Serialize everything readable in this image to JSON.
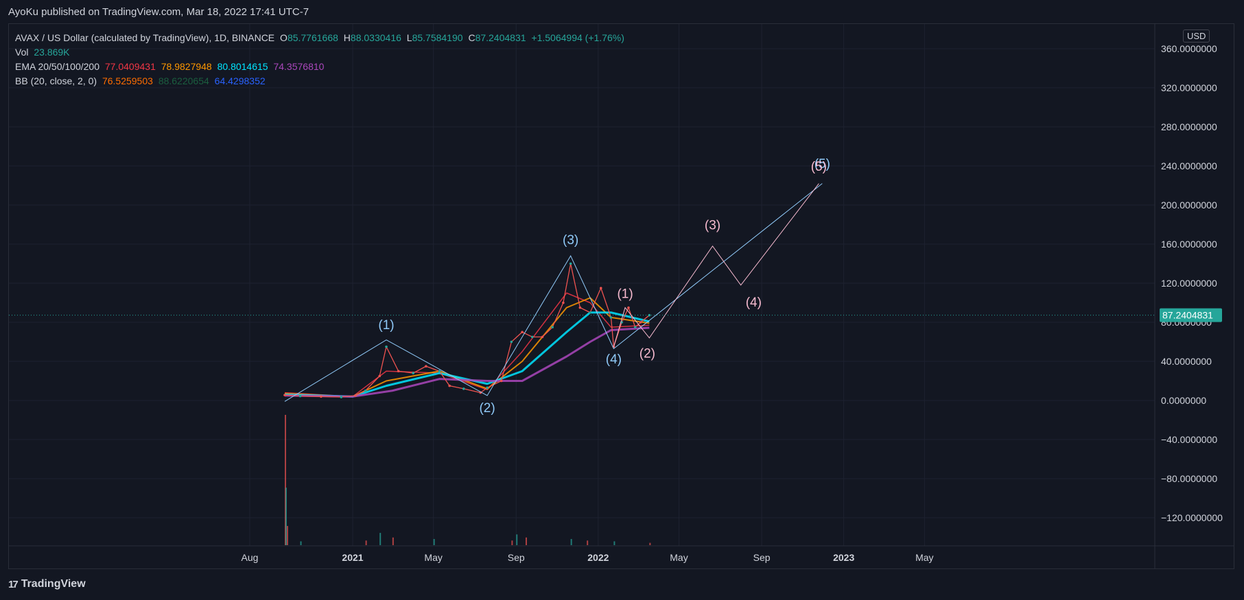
{
  "header": {
    "text": "AyoKu published on TradingView.com, Mar 18, 2022 17:41 UTC-7"
  },
  "footer": {
    "brand": "TradingView",
    "logo_glyph": "17"
  },
  "currency_button": "USD",
  "legend": {
    "symbol": "AVAX / US Dollar (calculated by TradingView), 1D, BINANCE",
    "o_label": "O",
    "o": "85.7761668",
    "h_label": "H",
    "h": "88.0330416",
    "l_label": "L",
    "l": "85.7584190",
    "c_label": "C",
    "c": "87.2404831",
    "change": "+1.5064994 (+1.76%)",
    "vol_label": "Vol",
    "vol": "23.869K",
    "ema_label": "EMA 20/50/100/200",
    "ema20": "77.0409431",
    "ema50": "78.9827948",
    "ema100": "80.8014615",
    "ema200": "74.3576810",
    "bb_label": "BB (20, close, 2, 0)",
    "bb_basis": "76.5259503",
    "bb_upper": "88.6220654",
    "bb_lower": "64.4298352"
  },
  "colors": {
    "background": "#131722",
    "grid": "#1e2230",
    "text": "#d1d4dc",
    "up": "#26a69a",
    "down": "#ef5350",
    "ema20": "#f23645",
    "ema50": "#ff9800",
    "ema100": "#00e5ff",
    "ema200": "#ab47bc",
    "bb_basis": "#ff6d00",
    "bb_upper": "#1b5e3f",
    "bb_lower": "#2962ff",
    "wave_blue": "#90caf9",
    "wave_pink": "#f8bbd0",
    "price_tag": "#26a69a"
  },
  "chart_data": {
    "type": "line",
    "title": "",
    "xlabel": "",
    "ylabel": "",
    "ylim": [
      -150,
      375
    ],
    "yticks": [
      360,
      320,
      280,
      240,
      200,
      160,
      120,
      80,
      40,
      0,
      -40,
      -80,
      -120
    ],
    "ytick_labels": [
      "360.0000000",
      "320.0000000",
      "280.0000000",
      "240.0000000",
      "200.0000000",
      "160.0000000",
      "120.0000000",
      "80.0000000",
      "40.0000000",
      "0.0000000",
      "−120.0000000"
    ],
    "ytick_labels_full": [
      "360.0000000",
      "320.0000000",
      "280.0000000",
      "240.0000000",
      "200.0000000",
      "160.0000000",
      "120.0000000",
      "80.0000000",
      "40.0000000",
      "0.0000000",
      "−40.0000000",
      "−80.0000000",
      "−120.0000000"
    ],
    "xticks": [
      "2020-08-01",
      "2021-01-01",
      "2021-05-01",
      "2021-09-01",
      "2022-01-01",
      "2022-05-01",
      "2022-09-01",
      "2023-01-01",
      "2023-05-01"
    ],
    "xtick_labels": [
      "Aug",
      "2021",
      "May",
      "Sep",
      "2022",
      "May",
      "Sep",
      "2023",
      "May"
    ],
    "xtick_bold": [
      false,
      true,
      false,
      false,
      true,
      false,
      false,
      true,
      false
    ],
    "xlim": [
      "2020-05-01",
      "2023-11-15"
    ],
    "last_price": 87.2404831,
    "last_price_label": "87.2404831",
    "price_series": {
      "name": "AVAX / US Dollar",
      "x": [
        "2020-09-22",
        "2020-10-15",
        "2020-11-15",
        "2020-12-15",
        "2021-01-05",
        "2021-01-20",
        "2021-02-10",
        "2021-02-20",
        "2021-03-10",
        "2021-04-01",
        "2021-04-20",
        "2021-05-10",
        "2021-05-25",
        "2021-06-15",
        "2021-07-10",
        "2021-07-20",
        "2021-08-10",
        "2021-08-25",
        "2021-09-10",
        "2021-09-25",
        "2021-10-10",
        "2021-10-25",
        "2021-11-10",
        "2021-11-21",
        "2021-12-05",
        "2021-12-20",
        "2022-01-05",
        "2022-01-20",
        "2022-01-24",
        "2022-02-05",
        "2022-02-15",
        "2022-02-25",
        "2022-03-05",
        "2022-03-18"
      ],
      "values": [
        5.5,
        4.5,
        4,
        3.5,
        5,
        10,
        25,
        55,
        30,
        28,
        35,
        30,
        15,
        12,
        8,
        13,
        20,
        60,
        70,
        65,
        65,
        75,
        100,
        140,
        95,
        90,
        115,
        85,
        55,
        80,
        95,
        75,
        80,
        87.24
      ]
    },
    "ema_series": [
      {
        "name": "EMA 20",
        "x": [
          "2020-09-22",
          "2021-01-01",
          "2021-02-20",
          "2021-05-10",
          "2021-07-20",
          "2021-09-10",
          "2021-11-15",
          "2021-12-20",
          "2022-01-20",
          "2022-03-18"
        ],
        "values": [
          8,
          4,
          30,
          28,
          11,
          50,
          110,
          100,
          75,
          77
        ]
      },
      {
        "name": "EMA 50",
        "x": [
          "2020-09-22",
          "2021-01-01",
          "2021-02-20",
          "2021-05-10",
          "2021-07-20",
          "2021-09-10",
          "2021-11-15",
          "2021-12-20",
          "2022-01-20",
          "2022-03-18"
        ],
        "values": [
          7,
          4,
          20,
          30,
          12,
          40,
          95,
          105,
          85,
          79
        ]
      },
      {
        "name": "EMA 100",
        "x": [
          "2020-09-22",
          "2021-01-01",
          "2021-02-20",
          "2021-05-10",
          "2021-07-20",
          "2021-09-10",
          "2021-11-15",
          "2021-12-20",
          "2022-01-20",
          "2022-03-18"
        ],
        "values": [
          6,
          4,
          15,
          28,
          17,
          30,
          70,
          90,
          90,
          80.8
        ]
      },
      {
        "name": "EMA 200",
        "x": [
          "2020-09-22",
          "2021-01-01",
          "2021-03-01",
          "2021-05-10",
          "2021-07-20",
          "2021-09-10",
          "2021-11-15",
          "2021-12-20",
          "2022-01-20",
          "2022-03-18"
        ],
        "values": [
          5,
          4,
          10,
          22,
          20,
          20,
          45,
          60,
          72,
          74.4
        ]
      }
    ],
    "volume": {
      "x": [
        "2020-09-22",
        "2020-09-23",
        "2020-09-25",
        "2020-10-15",
        "2021-01-20",
        "2021-02-10",
        "2021-03-01",
        "2021-05-01",
        "2021-08-25",
        "2021-09-01",
        "2021-09-15",
        "2021-11-21",
        "2021-12-15",
        "2022-01-24",
        "2022-03-18"
      ],
      "values": [
        170,
        75,
        25,
        5,
        6,
        16,
        10,
        8,
        6,
        14,
        10,
        8,
        6,
        5,
        3
      ]
    },
    "wave_labels_blue": [
      {
        "label": "(1)",
        "x": "2021-02-20",
        "y": 73
      },
      {
        "label": "(2)",
        "x": "2021-07-20",
        "y": -12
      },
      {
        "label": "(3)",
        "x": "2021-11-21",
        "y": 160
      },
      {
        "label": "(4)",
        "x": "2022-01-24",
        "y": 38
      },
      {
        "label": "(5)",
        "x": "2022-11-30",
        "y": 238
      }
    ],
    "wave_labels_pink": [
      {
        "label": "(1)",
        "x": "2022-02-10",
        "y": 105
      },
      {
        "label": "(2)",
        "x": "2022-03-15",
        "y": 44
      },
      {
        "label": "(3)",
        "x": "2022-06-20",
        "y": 175
      },
      {
        "label": "(4)",
        "x": "2022-08-20",
        "y": 96
      },
      {
        "label": "(5)",
        "x": "2022-11-25",
        "y": 235
      }
    ],
    "wave_path_blue": {
      "x": [
        "2020-09-22",
        "2021-02-20",
        "2021-07-20",
        "2021-11-21",
        "2022-01-24",
        "2022-11-30"
      ],
      "values": [
        -1,
        62,
        5,
        148,
        53,
        222
      ]
    },
    "wave_path_pink": {
      "x": [
        "2022-01-24",
        "2022-02-10",
        "2022-03-18",
        "2022-06-20",
        "2022-08-01",
        "2022-11-25"
      ],
      "values": [
        55,
        95,
        64,
        158,
        118,
        222
      ]
    }
  }
}
